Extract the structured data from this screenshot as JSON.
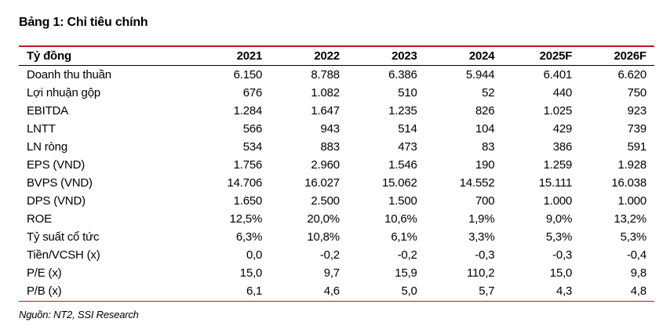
{
  "title": "Bảng 1: Chỉ tiêu chính",
  "table": {
    "header": [
      "Tỷ đồng",
      "2021",
      "2022",
      "2023",
      "2024",
      "2025F",
      "2026F"
    ],
    "rows": [
      [
        "Doanh thu thuần",
        "6.150",
        "8.788",
        "6.386",
        "5.944",
        "6.401",
        "6.620"
      ],
      [
        "Lợi nhuận gộp",
        "676",
        "1.082",
        "510",
        "52",
        "440",
        "750"
      ],
      [
        "EBITDA",
        "1.284",
        "1.647",
        "1.235",
        "826",
        "1.025",
        "923"
      ],
      [
        "LNTT",
        "566",
        "943",
        "514",
        "104",
        "429",
        "739"
      ],
      [
        "LN ròng",
        "534",
        "883",
        "473",
        "83",
        "386",
        "591"
      ],
      [
        "EPS (VND)",
        "1.756",
        "2.960",
        "1.546",
        "190",
        "1.259",
        "1.928"
      ],
      [
        "BVPS (VND)",
        "14.706",
        "16.027",
        "15.062",
        "14.552",
        "15.111",
        "16.038"
      ],
      [
        "DPS (VND)",
        "1.650",
        "2.500",
        "1.500",
        "700",
        "1.000",
        "1.000"
      ],
      [
        "ROE",
        "12,5%",
        "20,0%",
        "10,6%",
        "1,9%",
        "9,0%",
        "13,2%"
      ],
      [
        "Tỷ suất cổ tức",
        "6,3%",
        "10,8%",
        "6,1%",
        "3,3%",
        "5,3%",
        "5,3%"
      ],
      [
        "Tiền/VCSH (x)",
        "0,0",
        "-0,2",
        "-0,2",
        "-0,3",
        "-0,3",
        "-0,4"
      ],
      [
        "P/E (x)",
        "15,0",
        "9,7",
        "15,9",
        "110,2",
        "15,0",
        "9,8"
      ],
      [
        "P/B (x)",
        "6,1",
        "4,6",
        "5,0",
        "5,7",
        "4,3",
        "4,8"
      ]
    ]
  },
  "source": "Nguồn: NT2, SSI Research",
  "colors": {
    "accent": "#c8102e",
    "text": "#000000"
  }
}
